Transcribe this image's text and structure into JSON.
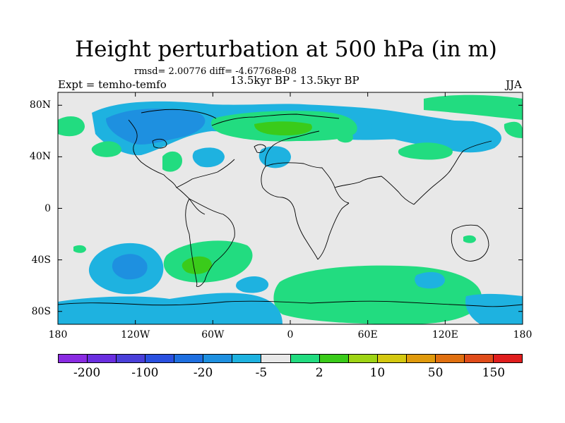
{
  "figure": {
    "title": "Height perturbation at 500 hPa (in m)",
    "stats": "rmsd= 2.00776 diff= -4.67768e-08",
    "experiment": "Expt = temho-temfo",
    "period": "13.5kyr BP - 13.5kyr BP",
    "season": "JJA"
  },
  "axes": {
    "lat_labels": [
      "80N",
      "40N",
      "0",
      "40S",
      "80S"
    ],
    "lat_values": [
      80,
      40,
      0,
      -40,
      -80
    ],
    "lon_labels": [
      "180",
      "120W",
      "60W",
      "0",
      "60E",
      "120E",
      "180"
    ],
    "lon_values": [
      -180,
      -120,
      -60,
      0,
      60,
      120,
      180
    ],
    "lon_range": [
      -180,
      180
    ],
    "lat_range": [
      -90,
      90
    ]
  },
  "colorbar": {
    "colors": [
      "#8a2be2",
      "#6a2ee0",
      "#4a3fd9",
      "#2a50e0",
      "#1e6fe0",
      "#1e90e0",
      "#1eb2e0",
      "#e8e8e8",
      "#22dc80",
      "#3acb1a",
      "#9ed414",
      "#d4c810",
      "#e09a0c",
      "#e07010",
      "#e04c1a",
      "#e01e1e"
    ],
    "labels": [
      "-200",
      "-100",
      "-20",
      "-5",
      "2",
      "10",
      "50",
      "150"
    ]
  },
  "field_colors": {
    "neutral": "#e8e8e8",
    "positive_low": "#22dc80",
    "positive_mid": "#3acb1a",
    "negative_low": "#1eb2e0",
    "negative_mid": "#1e90e0"
  },
  "chart_data": {
    "type": "heatmap",
    "title": "Height perturbation at 500 hPa (in m)",
    "xlim": [
      -180,
      180
    ],
    "ylim": [
      -90,
      90
    ],
    "regions": [
      {
        "lon": -120,
        "lat": 40,
        "value": -5
      },
      {
        "lon": -120,
        "lat": 70,
        "value": -20
      },
      {
        "lon": -150,
        "lat": 80,
        "value": -5
      },
      {
        "lon": -30,
        "lat": 75,
        "value": -5
      },
      {
        "lon": -150,
        "lat": 50,
        "value": 2
      },
      {
        "lon": -85,
        "lat": 35,
        "value": 2
      },
      {
        "lon": -75,
        "lat": 45,
        "value": -5
      },
      {
        "lon": 20,
        "lat": 65,
        "value": 10
      },
      {
        "lon": 20,
        "lat": 40,
        "value": -5
      },
      {
        "lon": 80,
        "lat": 70,
        "value": -5
      },
      {
        "lon": 120,
        "lat": 65,
        "value": -20
      },
      {
        "lon": 160,
        "lat": 85,
        "value": 2
      },
      {
        "lon": 120,
        "lat": 45,
        "value": 2
      },
      {
        "lon": -130,
        "lat": -40,
        "value": -20
      },
      {
        "lon": -70,
        "lat": -40,
        "value": 10
      },
      {
        "lon": 25,
        "lat": -75,
        "value": 2
      },
      {
        "lon": -60,
        "lat": -80,
        "value": -5
      },
      {
        "lon": 140,
        "lat": -75,
        "value": -5
      }
    ]
  }
}
